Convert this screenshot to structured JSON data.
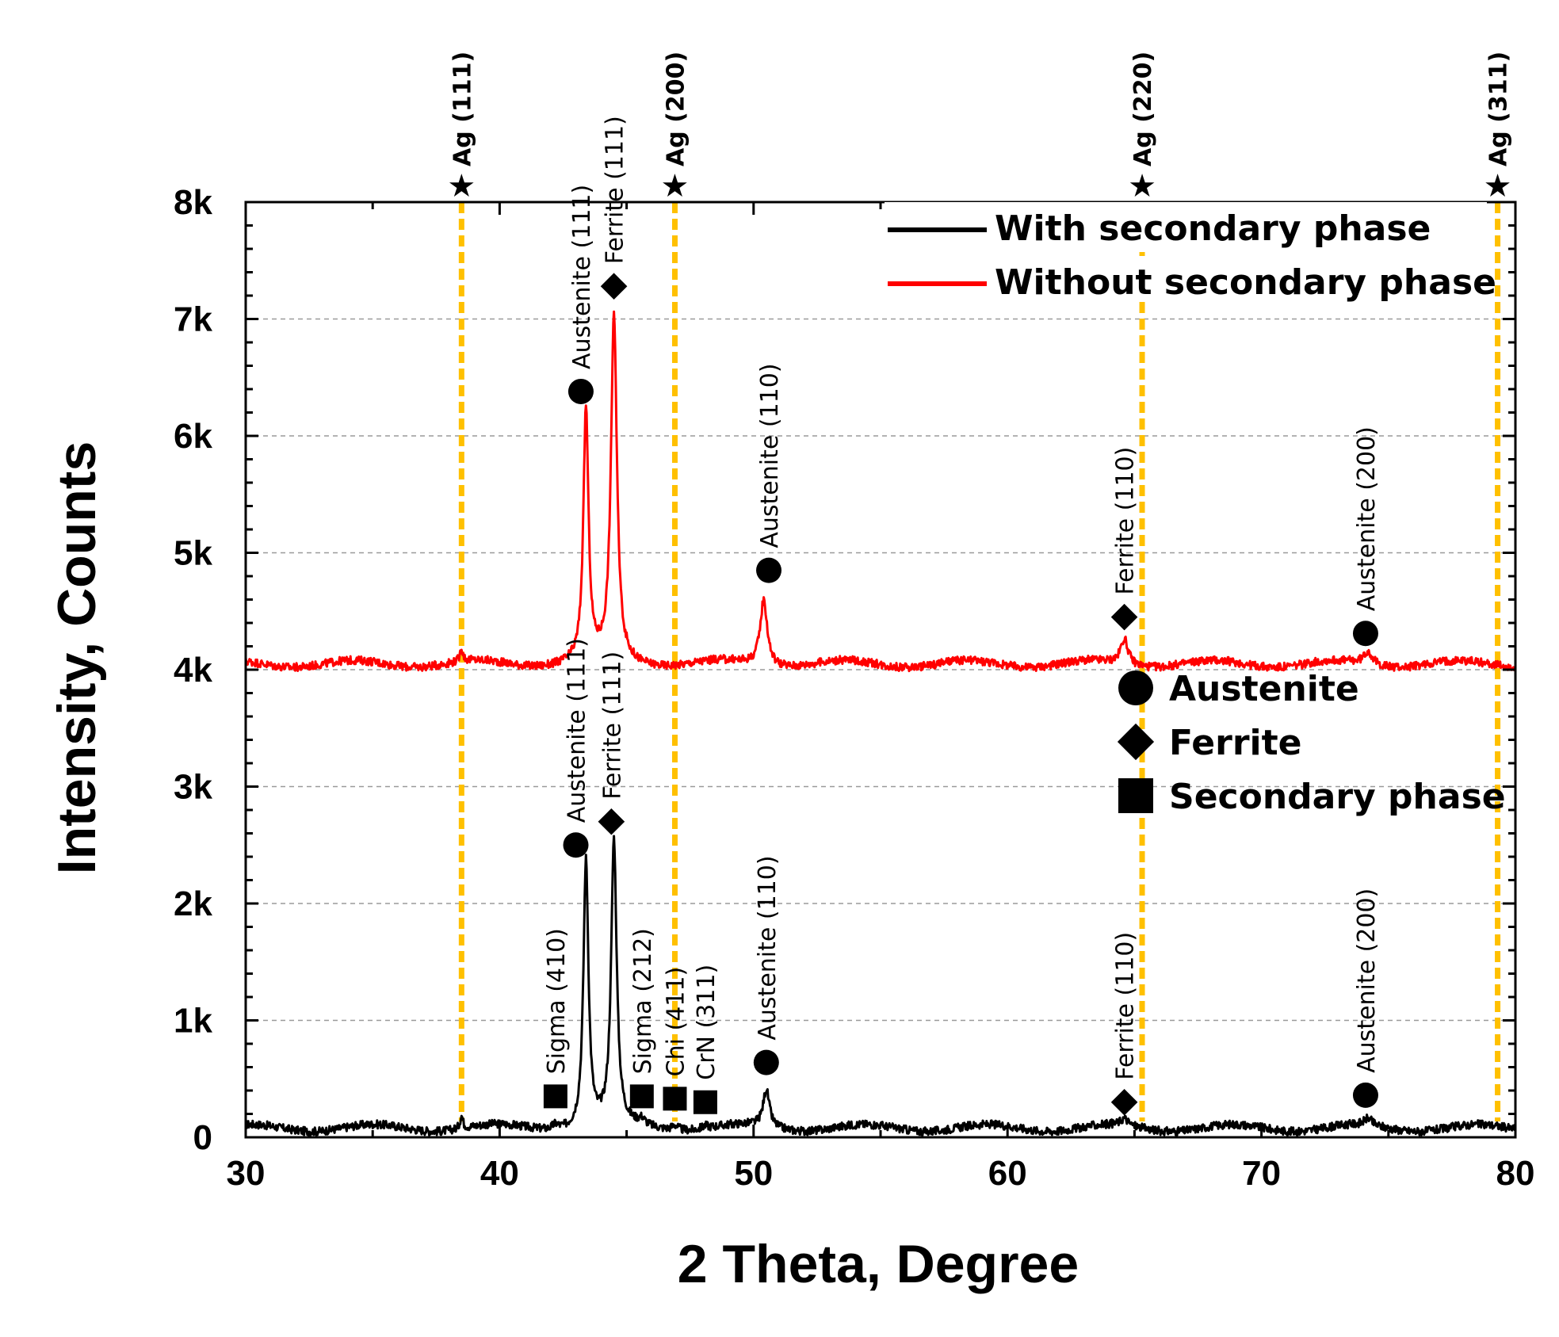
{
  "chart_data": {
    "type": "line",
    "title": "",
    "xlabel": "2 Theta, Degree",
    "ylabel": "Intensity, Counts",
    "xlim": [
      30,
      80
    ],
    "ylim": [
      0,
      8000
    ],
    "x_ticks": [
      30,
      40,
      50,
      60,
      70,
      80
    ],
    "x_tick_labels": [
      "30",
      "40",
      "50",
      "60",
      "70",
      "80"
    ],
    "y_ticks": [
      0,
      1000,
      2000,
      3000,
      4000,
      5000,
      6000,
      7000,
      8000
    ],
    "y_tick_labels": [
      "0",
      "1k",
      "2k",
      "3k",
      "4k",
      "5k",
      "6k",
      "7k",
      "8k"
    ],
    "grid": "horizontal dashed",
    "series": [
      {
        "name": "With secondary phase",
        "color": "#000000",
        "baseline": 80,
        "peaks": [
          {
            "x": 38.5,
            "height": 110,
            "width": 0.07
          },
          {
            "x": 42.2,
            "height": 40,
            "width": 0.15
          },
          {
            "x": 43.4,
            "height": 2280,
            "width": 0.12
          },
          {
            "x": 44.5,
            "height": 2430,
            "width": 0.13
          },
          {
            "x": 45.6,
            "height": 50,
            "width": 0.15
          },
          {
            "x": 46.9,
            "height": 45,
            "width": 0.15
          },
          {
            "x": 48.1,
            "height": 25,
            "width": 0.15
          },
          {
            "x": 50.5,
            "height": 320,
            "width": 0.15
          },
          {
            "x": 64.6,
            "height": 60,
            "width": 0.18
          },
          {
            "x": 74.2,
            "height": 60,
            "width": 0.18
          }
        ]
      },
      {
        "name": "Without secondary phase",
        "color": "#ff0000",
        "baseline": 4050,
        "peaks": [
          {
            "x": 38.5,
            "height": 110,
            "width": 0.07
          },
          {
            "x": 43.4,
            "height": 2150,
            "width": 0.12
          },
          {
            "x": 44.5,
            "height": 2960,
            "width": 0.14
          },
          {
            "x": 50.4,
            "height": 560,
            "width": 0.17
          },
          {
            "x": 64.6,
            "height": 220,
            "width": 0.18
          },
          {
            "x": 74.2,
            "height": 110,
            "width": 0.2
          }
        ]
      }
    ],
    "reference_lines": [
      {
        "x": 38.5,
        "label": "Ag (111)",
        "color": "#ffc000"
      },
      {
        "x": 46.9,
        "label": "Ag (200)",
        "color": "#ffc000"
      },
      {
        "x": 65.3,
        "label": "Ag (220)",
        "color": "#ffc000"
      },
      {
        "x": 79.3,
        "label": "Ag (311)",
        "color": "#ffc000"
      }
    ],
    "annotations": [
      {
        "x": 43.2,
        "y": 6380,
        "marker": "circle",
        "label": "Austenite (111)"
      },
      {
        "x": 44.5,
        "y": 7280,
        "marker": "diamond",
        "label": "Ferrite (111)"
      },
      {
        "x": 50.6,
        "y": 4850,
        "marker": "circle",
        "label": "Austenite (110)"
      },
      {
        "x": 64.6,
        "y": 4450,
        "marker": "diamond",
        "label": "Ferrite (110)"
      },
      {
        "x": 74.1,
        "y": 4310,
        "marker": "circle",
        "label": "Austenite (200)"
      },
      {
        "x": 43.0,
        "y": 2500,
        "marker": "circle",
        "label": "Austenite (111)"
      },
      {
        "x": 44.4,
        "y": 2700,
        "marker": "diamond",
        "label": "Ferrite (111)"
      },
      {
        "x": 42.2,
        "y": 350,
        "marker": "square",
        "label": "Sigma (410)"
      },
      {
        "x": 45.6,
        "y": 350,
        "marker": "square",
        "label": "Sigma (212)"
      },
      {
        "x": 46.9,
        "y": 330,
        "marker": "square",
        "label": "Chi (411)"
      },
      {
        "x": 48.1,
        "y": 300,
        "marker": "square",
        "label": "CrN (311)"
      },
      {
        "x": 50.5,
        "y": 640,
        "marker": "circle",
        "label": "Austenite (110)"
      },
      {
        "x": 64.6,
        "y": 300,
        "marker": "diamond",
        "label": "Ferrite (110)"
      },
      {
        "x": 74.1,
        "y": 360,
        "marker": "circle",
        "label": "Austenite (200)"
      }
    ],
    "legend": {
      "position": "top-right",
      "lines": [
        {
          "label": "With secondary phase",
          "color": "#000000"
        },
        {
          "label": "Without secondary phase",
          "color": "#ff0000"
        }
      ],
      "markers": [
        {
          "symbol": "circle",
          "label": "Austenite"
        },
        {
          "symbol": "diamond",
          "label": "Ferrite"
        },
        {
          "symbol": "square",
          "label": "Secondary phase"
        }
      ]
    }
  }
}
